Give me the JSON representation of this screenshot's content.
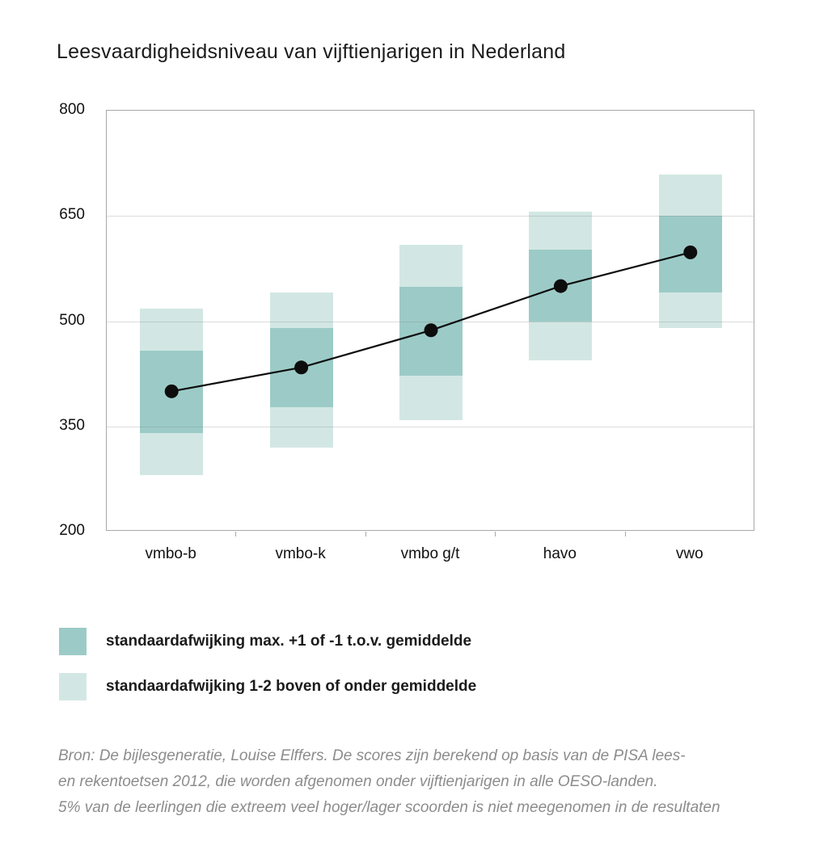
{
  "title": "Leesvaardigheidsniveau van vijftienjarigen in Nederland",
  "chart_data": {
    "type": "bar",
    "subtype": "floating-range-bars-with-mean-line",
    "title": "Leesvaardigheidsniveau van vijftienjarigen in Nederland",
    "categories": [
      "vmbo-b",
      "vmbo-k",
      "vmbo g/t",
      "havo",
      "vwo"
    ],
    "series": [
      {
        "name": "gemiddelde",
        "type": "line",
        "values": [
          400,
          434,
          487,
          550,
          598
        ]
      },
      {
        "name": "standaardafwijking max. +1 of -1 t.o.v. gemiddelde",
        "type": "range-bar",
        "ranges": [
          [
            340,
            458
          ],
          [
            377,
            490
          ],
          [
            422,
            549
          ],
          [
            499,
            602
          ],
          [
            541,
            650
          ]
        ]
      },
      {
        "name": "standaardafwijking 1-2 boven of onder gemiddelde",
        "type": "range-bar",
        "ranges": [
          [
            281,
            518
          ],
          [
            320,
            541
          ],
          [
            359,
            609
          ],
          [
            444,
            656
          ],
          [
            490,
            709
          ]
        ]
      }
    ],
    "ylim": [
      200,
      800
    ],
    "yticks": [
      200,
      350,
      500,
      650,
      800
    ],
    "gridlines_at": [
      350,
      500,
      650
    ],
    "grid": true,
    "legend_position": "below-chart",
    "xlabel": "",
    "ylabel": ""
  },
  "legend": {
    "items": [
      {
        "label": "standaardafwijking max. +1 of -1 t.o.v. gemiddelde",
        "color": "#9ccbc7"
      },
      {
        "label": "standaardafwijking 1-2 boven of onder gemiddelde",
        "color": "#d2e7e3"
      }
    ]
  },
  "source": {
    "lines": [
      "Bron: De bijlesgeneratie, Louise Elffers. De scores zijn berekend op basis van de PISA lees-",
      "en rekentoetsen 2012, die worden afgenomen onder vijftienjarigen in alle OESO-landen.",
      "5% van de leerlingen die extreem veel hoger/lager scoorden is niet meegenomen in de resultaten"
    ]
  },
  "colors": {
    "sd_inner": "#9ccbc7",
    "sd_outer": "#d2e7e3",
    "mean_line": "#0d0d0d",
    "grid": "#d9d9d9",
    "axis_border": "#a8a8a8",
    "text": "#1b1b1b",
    "source_text": "#8c8c8c",
    "background": "#ffffff"
  }
}
